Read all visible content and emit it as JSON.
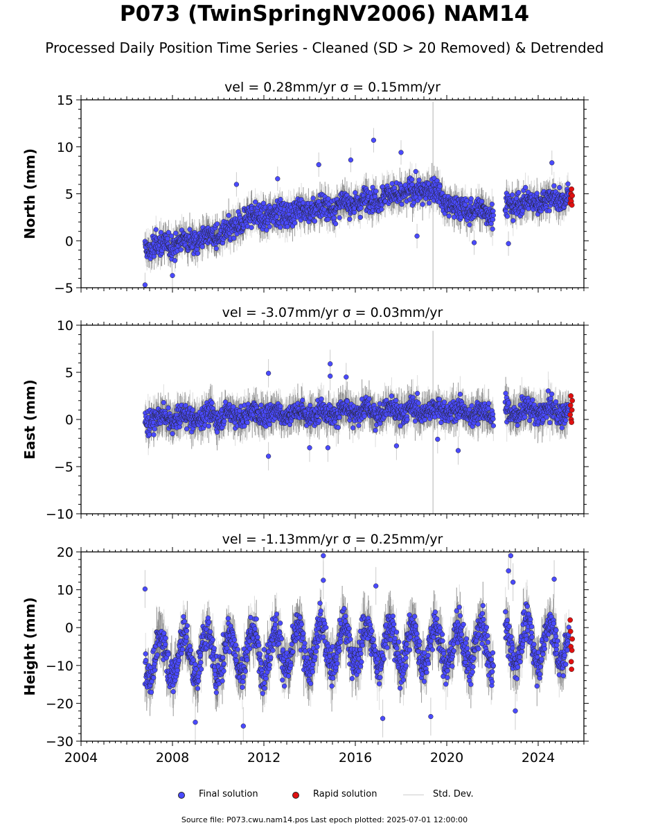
{
  "header": {
    "title": "P073 (TwinSpringNV2006) NAM14",
    "subtitle": "Processed Daily Position Time Series - Cleaned (SD > 20 Removed) & Detrended"
  },
  "legend": {
    "final_label": "Final solution",
    "rapid_label": "Rapid solution",
    "std_label": "Std. Dev.",
    "final_color": "#4a4aff",
    "rapid_color": "#e01010",
    "std_color": "#cccccc"
  },
  "footer": "Source file: P073.cwu.nam14.pos  Last epoch plotted: 2025-07-01 12:00:00",
  "chart_data": [
    {
      "type": "scatter",
      "title": "vel = 0.28mm/yr   σ = 0.15mm/yr",
      "ylabel": "North (mm)",
      "xlim": [
        2004,
        2026
      ],
      "ylim": [
        -5,
        15
      ],
      "yticks": [
        -5,
        0,
        5,
        10,
        15
      ],
      "xticks": [
        2004,
        2008,
        2012,
        2016,
        2020,
        2024
      ],
      "data_start": 2006.8,
      "gap": [
        2022.05,
        2022.55
      ],
      "rapid_start": 2025.35,
      "data_end": 2025.5,
      "trend": [
        [
          2006.8,
          -0.8
        ],
        [
          2010.5,
          0.8
        ],
        [
          2011.2,
          2.5
        ],
        [
          2013.2,
          3.0
        ],
        [
          2015.5,
          3.8
        ],
        [
          2017.5,
          4.8
        ],
        [
          2019.4,
          5.5
        ],
        [
          2020.3,
          3.5
        ],
        [
          2022.0,
          3.0
        ],
        [
          2022.6,
          3.8
        ],
        [
          2025.5,
          4.6
        ]
      ],
      "scatter_sd": 1.1,
      "bar_half": 1.3,
      "seasonal_amp": 0.3,
      "rapid_values": [
        4.0,
        4.5,
        5.0,
        4.2,
        5.5,
        3.8,
        4.8
      ],
      "outliers": [
        [
          2006.8,
          -4.7
        ],
        [
          2008.0,
          -3.7
        ],
        [
          2010.8,
          6.0
        ],
        [
          2012.6,
          6.6
        ],
        [
          2014.4,
          8.1
        ],
        [
          2015.8,
          8.6
        ],
        [
          2016.8,
          10.7
        ],
        [
          2018.0,
          9.4
        ],
        [
          2018.7,
          0.5
        ],
        [
          2021.2,
          -0.2
        ],
        [
          2022.7,
          -0.3
        ],
        [
          2024.6,
          8.3
        ]
      ],
      "tall_bar": {
        "x": 2019.4,
        "y0": -5,
        "y1": 14.8
      }
    },
    {
      "type": "scatter",
      "title": "vel = -3.07mm/yr   σ = 0.03mm/yr",
      "ylabel": "East (mm)",
      "xlim": [
        2004,
        2026
      ],
      "ylim": [
        -10,
        10
      ],
      "yticks": [
        -10,
        -5,
        0,
        5,
        10
      ],
      "xticks": [
        2004,
        2008,
        2012,
        2016,
        2020,
        2024
      ],
      "data_start": 2006.8,
      "gap": [
        2022.05,
        2022.55
      ],
      "rapid_start": 2025.35,
      "data_end": 2025.5,
      "trend": [
        [
          2006.8,
          0.0
        ],
        [
          2012.0,
          0.6
        ],
        [
          2016.0,
          0.8
        ],
        [
          2019.5,
          1.0
        ],
        [
          2022.0,
          0.6
        ],
        [
          2022.6,
          0.9
        ],
        [
          2025.5,
          0.8
        ]
      ],
      "scatter_sd": 1.0,
      "bar_half": 1.5,
      "seasonal_amp": 0.4,
      "rapid_values": [
        0.5,
        1.5,
        2.5,
        0.0,
        -0.3,
        1.0,
        2.0
      ],
      "outliers": [
        [
          2012.2,
          4.9
        ],
        [
          2012.2,
          -3.9
        ],
        [
          2014.9,
          5.9
        ],
        [
          2014.9,
          4.6
        ],
        [
          2015.6,
          4.5
        ],
        [
          2014.0,
          -3.0
        ],
        [
          2014.8,
          -3.0
        ],
        [
          2017.8,
          -2.8
        ],
        [
          2020.5,
          -3.3
        ],
        [
          2019.6,
          -2.1
        ]
      ],
      "tall_bar": {
        "x": 2019.4,
        "y0": -10,
        "y1": 9.4
      }
    },
    {
      "type": "scatter",
      "title": "vel = -1.13mm/yr   σ = 0.25mm/yr",
      "ylabel": "Height (mm)",
      "xlim": [
        2004,
        2026
      ],
      "ylim": [
        -30,
        20
      ],
      "yticks": [
        -30,
        -20,
        -10,
        0,
        10,
        20
      ],
      "xticks": [
        2004,
        2008,
        2012,
        2016,
        2020,
        2024
      ],
      "xticklabels": [
        "2004",
        "2008",
        "2012",
        "2016",
        "2020",
        "2024"
      ],
      "data_start": 2006.8,
      "gap": [
        2022.05,
        2022.55
      ],
      "rapid_start": 2025.35,
      "data_end": 2025.5,
      "trend": [
        [
          2006.8,
          -8.0
        ],
        [
          2012.0,
          -6.0
        ],
        [
          2016.0,
          -4.5
        ],
        [
          2020.0,
          -5.0
        ],
        [
          2022.0,
          -5.0
        ],
        [
          2022.6,
          -4.0
        ],
        [
          2025.5,
          -4.0
        ]
      ],
      "scatter_sd": 4.0,
      "bar_half": 5.0,
      "seasonal_amp": 5.5,
      "rapid_values": [
        2.0,
        -1.0,
        -5.0,
        -9.0,
        -11.0,
        -6.0,
        -3.0
      ],
      "outliers": [
        [
          2006.8,
          10.2
        ],
        [
          2014.6,
          19.0
        ],
        [
          2014.6,
          12.5
        ],
        [
          2022.8,
          19.0
        ],
        [
          2022.7,
          15.0
        ],
        [
          2022.9,
          12.0
        ],
        [
          2024.7,
          12.8
        ],
        [
          2009.0,
          -25.0
        ],
        [
          2011.1,
          -26.0
        ],
        [
          2017.2,
          -24.0
        ],
        [
          2019.3,
          -23.5
        ],
        [
          2023.0,
          -22.0
        ],
        [
          2016.9,
          11.0
        ]
      ],
      "tall_bar": null
    }
  ]
}
